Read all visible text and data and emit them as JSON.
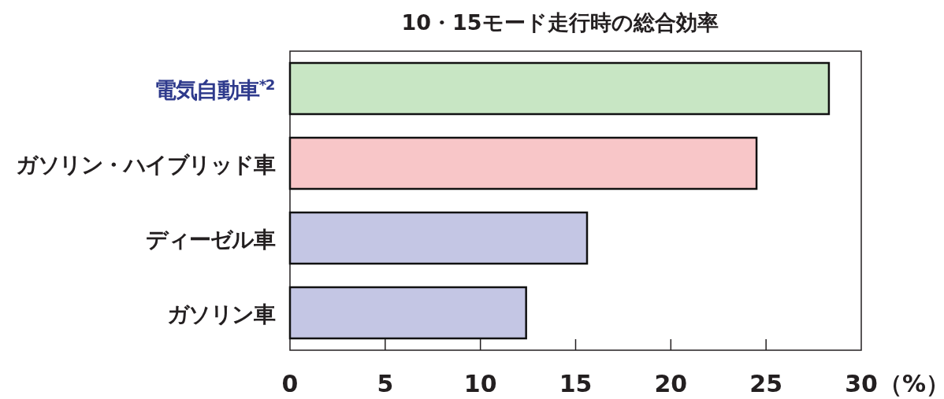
{
  "chart_data": {
    "type": "bar",
    "orientation": "horizontal",
    "title": "10・15モード走行時の総合効率",
    "xlabel": "（%）",
    "categories": [
      "電気自動車$^{*2}$",
      "ガソリン・ハイブリッド車",
      "ディーゼル車",
      "ガソリン車"
    ],
    "values": [
      28.3,
      24.5,
      15.6,
      12.4
    ],
    "colors": [
      "#c8e6c4",
      "#f8c6c8",
      "#c4c6e4",
      "#c4c6e4"
    ],
    "xlim": [
      0,
      30
    ],
    "xticks": [
      0,
      5,
      10,
      15,
      20,
      25,
      30
    ],
    "grid": false
  }
}
